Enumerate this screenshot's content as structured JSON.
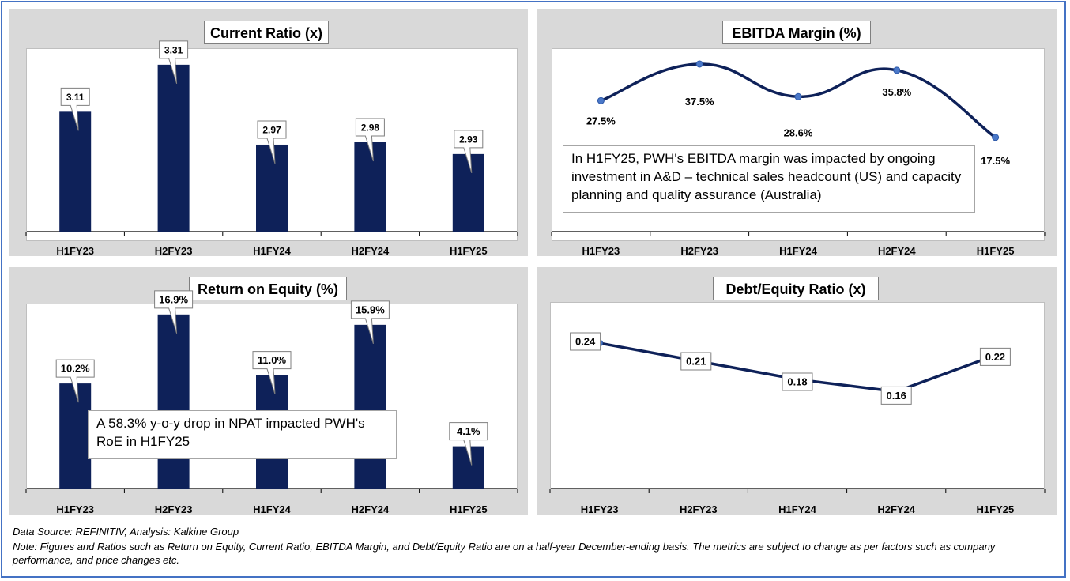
{
  "chart_data": [
    {
      "type": "bar",
      "title": "Current Ratio (x)",
      "categories": [
        "H1FY23",
        "H2FY23",
        "H1FY24",
        "H2FY24",
        "H1FY25"
      ],
      "values": [
        3.11,
        3.31,
        2.97,
        2.98,
        2.93
      ],
      "labels": [
        "3.11",
        "3.31",
        "2.97",
        "2.98",
        "2.93"
      ],
      "ylim": [
        2.6,
        3.36
      ],
      "color": "#0e2159"
    },
    {
      "type": "line",
      "title": "EBITDA Margin (%)",
      "categories": [
        "H1FY23",
        "H2FY23",
        "H1FY24",
        "H2FY24",
        "H1FY25"
      ],
      "values": [
        27.5,
        37.5,
        28.6,
        35.8,
        17.5
      ],
      "labels": [
        "27.5%",
        "37.5%",
        "28.6%",
        "35.8%",
        "17.5%"
      ],
      "ylim": [
        14,
        39
      ],
      "smooth": true,
      "color": "#0e2159",
      "annotation": "In H1FY25, PWH's EBITDA margin was impacted by ongoing investment in A&D – technical sales headcount (US) and capacity planning and quality assurance (Australia)"
    },
    {
      "type": "bar",
      "title": "Return on Equity (%)",
      "categories": [
        "H1FY23",
        "H2FY23",
        "H1FY24",
        "H2FY24",
        "H1FY25"
      ],
      "values": [
        10.2,
        16.9,
        11.0,
        15.9,
        4.1
      ],
      "labels": [
        "10.2%",
        "16.9%",
        "11.0%",
        "15.9%",
        "4.1%"
      ],
      "ylim": [
        0,
        17.5
      ],
      "color": "#0e2159",
      "annotation": "A 58.3% y-o-y drop in NPAT impacted PWH's RoE in H1FY25"
    },
    {
      "type": "line",
      "title": "Debt/Equity Ratio (x)",
      "categories": [
        "H1FY23",
        "H2FY23",
        "H1FY24",
        "H2FY24",
        "H1FY25"
      ],
      "values": [
        0.24,
        0.21,
        0.18,
        0.16,
        0.22
      ],
      "labels": [
        "0.24",
        "0.21",
        "0.18",
        "0.16",
        "0.22"
      ],
      "ylim": [
        0,
        0.3
      ],
      "smooth": false,
      "color": "#0e2159"
    }
  ],
  "footer": {
    "source": "Data Source: REFINITIV, Analysis: Kalkine Group",
    "note": "Note: Figures and Ratios such as Return on Equity, Current Ratio, EBITDA Margin, and Debt/Equity Ratio  are on a half-year December-ending basis. The metrics are subject to change as per factors such as company performance, and price changes etc."
  }
}
